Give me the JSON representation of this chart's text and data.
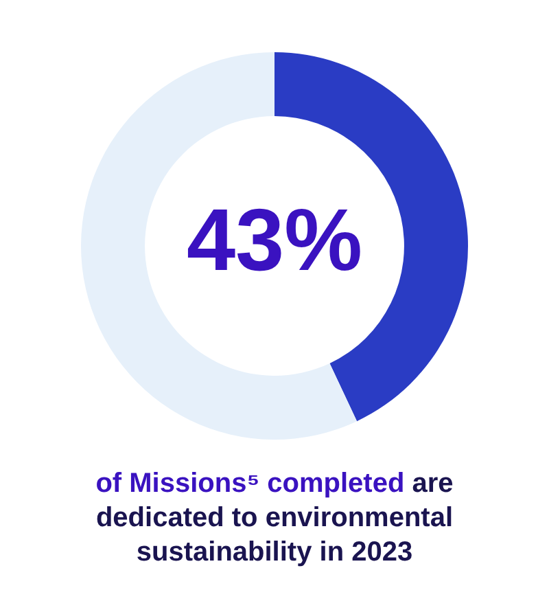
{
  "chart_data": {
    "type": "donut",
    "categories": [
      null,
      null
    ],
    "values": [
      43,
      57
    ],
    "colors": [
      "#2a3cc4",
      "#e6f0fa"
    ],
    "value_labels": [
      "43%",
      null
    ],
    "legend": false,
    "annotations": [
      "of Missions⁵ completed",
      "are dedicated to environmental sustainability in 2023"
    ]
  }
}
